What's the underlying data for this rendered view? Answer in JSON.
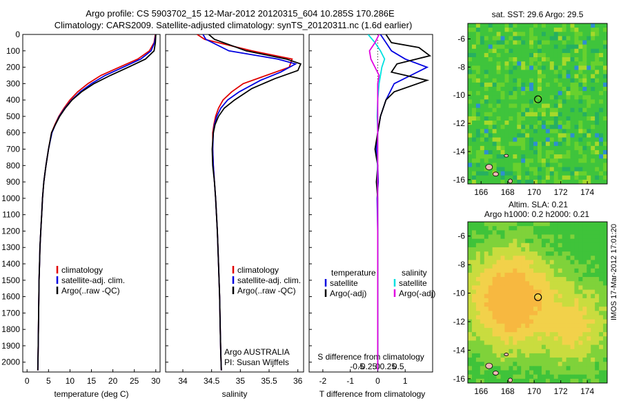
{
  "header": {
    "line1": "Argo profile: CS 5903702_15 12-Mar-2012 20120315_604 10.285S 170.286E",
    "line2": "Climatology: CARS2009. Satellite-adjusted climatology: synTS_20120311.nc (1.6d earlier)"
  },
  "side_note": "IMOS 17-Mar-2012 17:01:20",
  "colors": {
    "climatology": "#e00000",
    "satellite": "#0000e0",
    "argo": "#000000",
    "salinity_sat": "#00e0e0",
    "salinity_argo": "#e000e0"
  },
  "chart_data": [
    {
      "type": "line",
      "name": "temperature-profile",
      "xlabel": "temperature (deg C)",
      "ylabel": "",
      "xlim": [
        -1,
        31
      ],
      "ylim": [
        2060,
        0
      ],
      "xticks": [
        "0",
        "5",
        "10",
        "15",
        "20",
        "25",
        "30"
      ],
      "yticks": [
        "0",
        "100",
        "200",
        "300",
        "400",
        "500",
        "600",
        "700",
        "800",
        "900",
        "1000",
        "1100",
        "1200",
        "1300",
        "1400",
        "1500",
        "1600",
        "1700",
        "1800",
        "1900",
        "2000"
      ],
      "legend": [
        "climatology",
        "satellite-adj. clim.",
        "Argo(..raw -QC)"
      ],
      "series": [
        {
          "name": "climatology",
          "x": [
            29.9,
            29.6,
            28.5,
            25.8,
            21.5,
            17.2,
            14.2,
            11.8,
            10.0,
            8.6,
            7.4,
            6.5,
            5.7,
            5.0,
            4.4,
            3.9,
            3.6,
            3.4,
            3.2,
            3.0,
            2.9,
            2.8,
            2.7,
            2.6,
            2.5
          ],
          "y": [
            0,
            50,
            100,
            150,
            200,
            250,
            300,
            350,
            400,
            450,
            500,
            550,
            600,
            700,
            800,
            900,
            1000,
            1100,
            1200,
            1300,
            1400,
            1500,
            1700,
            1900,
            2050
          ]
        },
        {
          "name": "satellite-adj. clim.",
          "x": [
            30.0,
            29.7,
            28.9,
            26.5,
            22.4,
            18.2,
            15.0,
            12.4,
            10.4,
            8.8,
            7.5,
            6.6,
            5.8,
            5.0,
            4.4,
            3.9,
            3.6,
            3.4,
            3.2,
            3.0,
            2.9,
            2.8,
            2.7,
            2.6,
            2.5
          ],
          "y": [
            0,
            50,
            100,
            150,
            200,
            250,
            300,
            350,
            400,
            450,
            500,
            550,
            600,
            700,
            800,
            900,
            1000,
            1100,
            1200,
            1300,
            1400,
            1500,
            1700,
            1900,
            2050
          ]
        },
        {
          "name": "Argo(..raw -QC)",
          "x": [
            30.0,
            29.9,
            29.6,
            27.6,
            23.6,
            19.4,
            15.6,
            12.7,
            10.5,
            8.9,
            7.6,
            6.6,
            5.7,
            5.0,
            4.4,
            3.9,
            3.6,
            3.4,
            3.2,
            3.0,
            2.9,
            2.8,
            2.7,
            2.6,
            2.5
          ],
          "y": [
            0,
            50,
            100,
            150,
            200,
            250,
            300,
            350,
            400,
            450,
            500,
            550,
            600,
            700,
            800,
            900,
            1000,
            1100,
            1200,
            1300,
            1400,
            1500,
            1700,
            1900,
            2050
          ]
        }
      ]
    },
    {
      "type": "line",
      "name": "salinity-profile",
      "xlabel": "salinity",
      "xlim": [
        33.7,
        36.1
      ],
      "ylim": [
        2060,
        0
      ],
      "xticks": [
        "34",
        "34.5",
        "35",
        "35.5",
        "36"
      ],
      "legend": [
        "climatology",
        "satellite-adj. clim.",
        "Argo(..raw -QC)"
      ],
      "annotation": [
        "Argo AUSTRALIA",
        "PI: Susan Wijffels"
      ],
      "series": [
        {
          "name": "climatology",
          "x": [
            34.25,
            34.38,
            35.2,
            35.9,
            35.85,
            35.45,
            35.05,
            34.85,
            34.7,
            34.62,
            34.57,
            34.54,
            34.52,
            34.52,
            34.53,
            34.55,
            34.57,
            34.6,
            34.62,
            34.64,
            34.65,
            34.66,
            34.67
          ],
          "y": [
            0,
            30,
            100,
            150,
            200,
            250,
            300,
            350,
            400,
            450,
            500,
            550,
            600,
            700,
            800,
            900,
            1000,
            1200,
            1400,
            1600,
            1800,
            1950,
            2050
          ]
        },
        {
          "name": "satellite-adj. clim.",
          "x": [
            34.35,
            34.4,
            34.8,
            35.65,
            35.96,
            35.7,
            35.35,
            34.98,
            34.78,
            34.66,
            34.59,
            34.55,
            34.53,
            34.52,
            34.53,
            34.55,
            34.57,
            34.6,
            34.62,
            34.64,
            34.65,
            34.66,
            34.67
          ],
          "y": [
            0,
            30,
            100,
            150,
            180,
            230,
            280,
            350,
            400,
            450,
            500,
            550,
            600,
            700,
            800,
            900,
            1000,
            1200,
            1400,
            1600,
            1800,
            1950,
            2050
          ]
        },
        {
          "name": "Argo(..raw -QC)",
          "x": [
            34.45,
            34.55,
            35.1,
            35.8,
            36.05,
            36.0,
            35.6,
            35.2,
            34.9,
            34.72,
            34.62,
            34.56,
            34.53,
            34.51,
            34.52,
            34.55,
            34.57,
            34.6,
            34.62,
            34.64,
            34.65,
            34.66,
            34.67
          ],
          "y": [
            0,
            30,
            100,
            150,
            180,
            220,
            270,
            330,
            400,
            450,
            500,
            550,
            600,
            700,
            800,
            900,
            1000,
            1200,
            1400,
            1600,
            1800,
            1950,
            2050
          ]
        }
      ]
    },
    {
      "type": "line",
      "name": "difference-profile",
      "xlabel": "T difference from climatology",
      "xlabel_top": "S difference from climatology",
      "xlim": [
        -2.5,
        2.0
      ],
      "ylim": [
        2060,
        0
      ],
      "xticks": [
        "-2",
        "-1",
        "0",
        "1"
      ],
      "xticks_top": [
        "-0.5",
        "-0.25",
        "0",
        "0.25",
        "0.5"
      ],
      "legend_headers": [
        "temperature",
        "salinity"
      ],
      "legend": [
        "satellite",
        "Argo(-adj)",
        "satellite",
        "Argo(-adj)"
      ],
      "series": [
        {
          "name": "temperature satellite",
          "x": [
            0.1,
            0.3,
            0.5,
            1.0,
            1.8,
            1.2,
            0.6,
            0.3,
            0.1,
            0.0,
            -0.05,
            0.0,
            0.02,
            -0.02,
            0.0,
            0.0,
            0.0,
            0.0
          ],
          "y": [
            0,
            50,
            100,
            150,
            200,
            250,
            300,
            400,
            500,
            600,
            700,
            800,
            900,
            1000,
            1200,
            1400,
            1700,
            2050
          ]
        },
        {
          "name": "temperature Argo(-adj)",
          "x": [
            0.3,
            0.5,
            1.5,
            1.9,
            0.7,
            0.5,
            1.8,
            0.6,
            0.3,
            0.1,
            0.0,
            -0.1,
            0.0,
            -0.05,
            0.0,
            0.0,
            0.0,
            0.0,
            0.0
          ],
          "y": [
            0,
            50,
            80,
            130,
            180,
            230,
            280,
            350,
            400,
            500,
            600,
            700,
            800,
            900,
            1000,
            1200,
            1400,
            1700,
            2050
          ]
        },
        {
          "name": "salinity satellite",
          "x": [
            -0.35,
            -0.1,
            0.1,
            0.25,
            0.15,
            0.05,
            0.0,
            -0.02,
            0.0,
            -0.01,
            0.0,
            0.0,
            0.0,
            0.0
          ],
          "y": [
            0,
            50,
            100,
            150,
            200,
            300,
            400,
            500,
            600,
            800,
            1000,
            1200,
            1600,
            2050
          ]
        },
        {
          "name": "salinity Argo(-adj)",
          "x": [
            0.05,
            -0.1,
            -0.3,
            -0.25,
            -0.1,
            0.05,
            0.0,
            0.0,
            0.0,
            0.0,
            0.0
          ],
          "y": [
            0,
            50,
            100,
            150,
            200,
            250,
            300,
            400,
            600,
            1000,
            2050
          ]
        }
      ]
    },
    {
      "type": "heatmap",
      "name": "sst-map",
      "title": "sat. SST: 29.6  Argo: 29.5",
      "xlim": [
        165,
        175.5
      ],
      "ylim": [
        -16.3,
        -4.9
      ],
      "xticks": [
        "166",
        "168",
        "170",
        "172",
        "174"
      ],
      "yticks": [
        "-6",
        "-8",
        "-10",
        "-12",
        "-14",
        "-16"
      ],
      "marker": {
        "lon": 170.286,
        "lat": -10.285
      }
    },
    {
      "type": "heatmap",
      "name": "sla-map",
      "title_line1": "Altim. SLA: 0.21",
      "title_line2": "Argo h1000: 0.2  h2000: 0.21",
      "xlim": [
        165,
        175.5
      ],
      "ylim": [
        -16.3,
        -5.0
      ],
      "xticks": [
        "166",
        "168",
        "170",
        "172",
        "174"
      ],
      "yticks": [
        "-6",
        "-8",
        "-10",
        "-12",
        "-14",
        "-16"
      ],
      "marker": {
        "lon": 170.286,
        "lat": -10.285
      }
    }
  ]
}
